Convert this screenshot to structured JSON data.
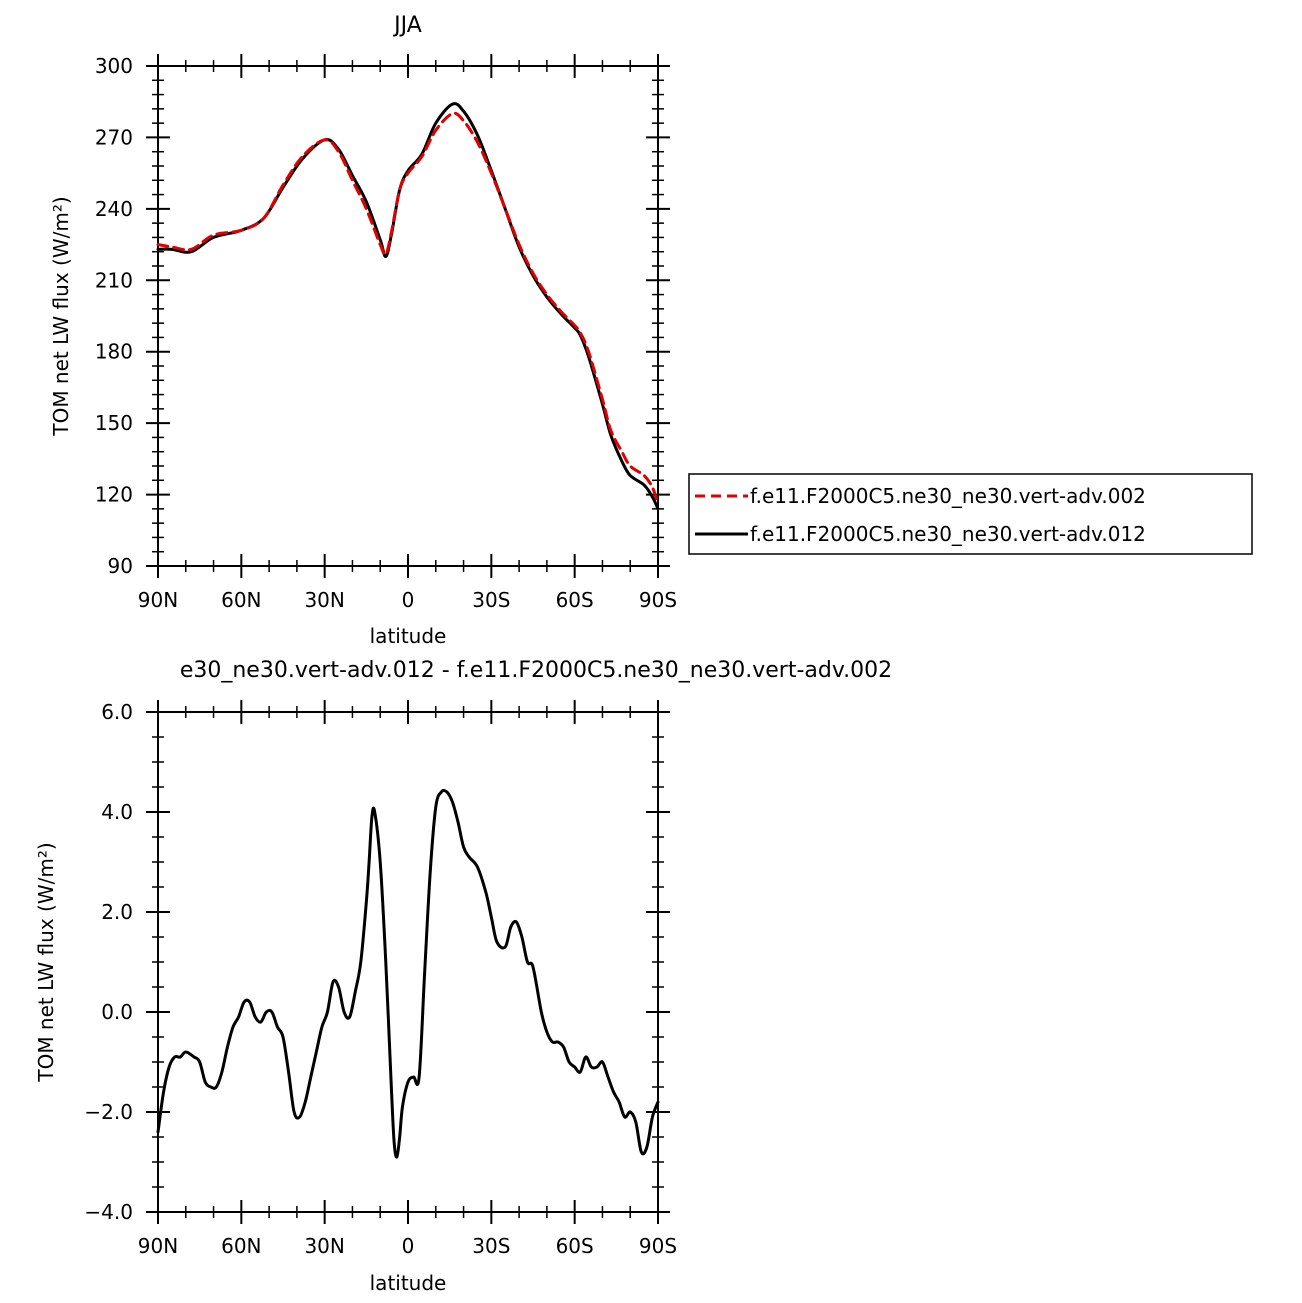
{
  "chart_data": [
    {
      "type": "line",
      "title": "JJA",
      "xlabel": "latitude",
      "ylabel": "TOM net LW flux (W/m²)",
      "xlim": [
        90,
        -90
      ],
      "ylim": [
        90,
        300
      ],
      "x_tick_values": [
        90,
        60,
        30,
        0,
        -30,
        -60,
        -90
      ],
      "x_tick_labels": [
        "90N",
        "60N",
        "30N",
        "0",
        "30S",
        "60S",
        "90S"
      ],
      "y_ticks": [
        "300",
        "270",
        "240",
        "210",
        "180",
        "150",
        "120",
        "90"
      ],
      "y_tick_values": [
        300,
        270,
        240,
        210,
        180,
        150,
        120,
        90
      ],
      "legend_position": "right",
      "series": [
        {
          "name": "f.e11.F2000C5.ne30_ne30.vert-adv.002",
          "color": "#e00000",
          "dash": "dashed",
          "x": [
            90,
            85,
            78,
            70,
            60,
            52,
            45,
            38,
            30,
            25,
            20,
            15,
            10,
            8,
            6,
            3,
            0,
            -5,
            -10,
            -16,
            -20,
            -25,
            -30,
            -35,
            -40,
            -45,
            -50,
            -55,
            -60,
            -62,
            -65,
            -70,
            -73,
            -77,
            -80,
            -85,
            -88,
            -90
          ],
          "y": [
            225,
            224,
            223,
            229,
            231,
            236,
            250,
            262,
            269,
            264,
            252,
            240,
            225,
            221,
            230,
            248,
            255,
            262,
            273,
            280,
            277,
            268,
            255,
            240,
            225,
            213,
            204,
            197,
            191,
            188,
            180,
            160,
            147,
            138,
            132,
            128,
            123,
            116
          ]
        },
        {
          "name": "f.e11.F2000C5.ne30_ne30.vert-adv.012",
          "color": "#000000",
          "dash": "solid",
          "x": [
            90,
            85,
            78,
            70,
            60,
            52,
            45,
            38,
            30,
            25,
            20,
            15,
            10,
            8,
            6,
            3,
            0,
            -5,
            -10,
            -16,
            -20,
            -25,
            -30,
            -35,
            -40,
            -45,
            -50,
            -55,
            -60,
            -62,
            -65,
            -70,
            -73,
            -77,
            -80,
            -85,
            -88,
            -90
          ],
          "y": [
            223,
            223,
            222,
            228,
            231,
            236,
            249,
            261,
            269,
            265,
            254,
            243,
            227,
            220,
            229,
            248,
            256,
            263,
            276,
            284,
            281,
            271,
            256,
            240,
            224,
            212,
            203,
            196,
            190,
            187,
            178,
            158,
            145,
            134,
            128,
            124,
            119,
            114
          ]
        }
      ]
    },
    {
      "type": "line",
      "title": "e30_ne30.vert-adv.012 - f.e11.F2000C5.ne30_ne30.vert-adv.002",
      "xlabel": "latitude",
      "ylabel": "TOM net LW flux (W/m²)",
      "xlim": [
        90,
        -90
      ],
      "ylim": [
        -4,
        6
      ],
      "x_tick_values": [
        90,
        60,
        30,
        0,
        -30,
        -60,
        -90
      ],
      "x_tick_labels": [
        "90N",
        "60N",
        "30N",
        "0",
        "30S",
        "60S",
        "90S"
      ],
      "y_ticks": [
        "6.0",
        "4.0",
        "2.0",
        "0.0",
        "-2.0",
        "-4.0"
      ],
      "y_tick_values": [
        6,
        4,
        2,
        0,
        -2,
        -4
      ],
      "series": [
        {
          "color": "#000000",
          "dash": "solid",
          "x": [
            90,
            88,
            86,
            84,
            82,
            80,
            77,
            75,
            73,
            71,
            69,
            67,
            65,
            63,
            61,
            59,
            57,
            55,
            53,
            51,
            49,
            47,
            45,
            43,
            41,
            39,
            37,
            35,
            33,
            31,
            29,
            27,
            25,
            23,
            21,
            19,
            17,
            15,
            14,
            13,
            12,
            10,
            8,
            6,
            5,
            4,
            3,
            2,
            0,
            -2,
            -4,
            -6,
            -8,
            -10,
            -12,
            -14,
            -16,
            -18,
            -20,
            -22,
            -25,
            -28,
            -30,
            -32,
            -35,
            -37,
            -39,
            -41,
            -43,
            -45,
            -48,
            -50,
            -52,
            -54,
            -56,
            -58,
            -60,
            -62,
            -64,
            -66,
            -68,
            -70,
            -72,
            -74,
            -76,
            -78,
            -80,
            -82,
            -84,
            -86,
            -88,
            -90
          ],
          "y": [
            -2.4,
            -1.6,
            -1.1,
            -0.9,
            -0.9,
            -0.8,
            -0.9,
            -1.0,
            -1.4,
            -1.5,
            -1.5,
            -1.2,
            -0.7,
            -0.3,
            -0.1,
            0.2,
            0.2,
            -0.1,
            -0.2,
            0.0,
            0.0,
            -0.3,
            -0.5,
            -1.2,
            -2.0,
            -2.1,
            -1.8,
            -1.3,
            -0.8,
            -0.3,
            0.0,
            0.6,
            0.5,
            0.0,
            -0.1,
            0.4,
            1.0,
            2.2,
            3.0,
            3.9,
            4.0,
            3.0,
            1.0,
            -1.5,
            -2.6,
            -2.9,
            -2.5,
            -1.9,
            -1.4,
            -1.3,
            -1.3,
            0.8,
            2.8,
            4.1,
            4.4,
            4.4,
            4.2,
            3.8,
            3.3,
            3.1,
            2.9,
            2.4,
            1.9,
            1.4,
            1.3,
            1.7,
            1.8,
            1.5,
            1.0,
            0.9,
            0.0,
            -0.4,
            -0.6,
            -0.6,
            -0.7,
            -1.0,
            -1.1,
            -1.2,
            -0.9,
            -1.1,
            -1.1,
            -1.0,
            -1.3,
            -1.6,
            -1.8,
            -2.1,
            -2.0,
            -2.2,
            -2.8,
            -2.7,
            -2.1,
            -1.8
          ]
        }
      ]
    }
  ]
}
